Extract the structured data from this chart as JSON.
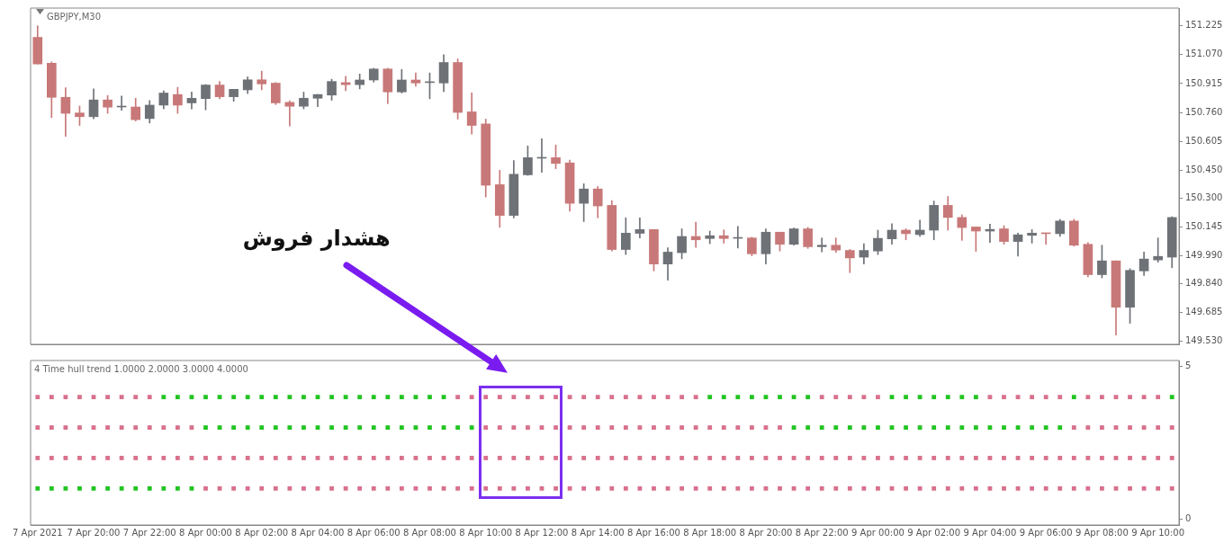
{
  "chart_data": [
    {
      "type": "candlestick",
      "title": "GBPJPY,M30",
      "annotations": [
        "هشدار فروش"
      ],
      "tick_labels": "y",
      "categories": [
        null,
        null,
        null,
        null,
        null,
        null,
        null,
        null,
        null,
        null,
        null,
        null,
        null,
        null,
        null,
        null,
        null,
        null,
        null,
        null,
        null,
        null,
        null,
        null,
        null,
        null,
        null,
        null,
        null,
        null,
        null,
        null,
        null,
        null,
        null,
        null,
        null,
        null,
        null,
        null,
        null,
        null,
        null,
        null,
        null,
        null,
        null,
        null,
        null,
        null,
        null,
        null,
        null,
        null,
        null,
        null,
        null,
        null,
        null,
        null,
        null,
        null,
        null,
        null,
        null,
        null,
        null,
        null,
        null,
        null,
        null,
        null,
        null,
        null,
        null,
        null,
        null,
        null,
        null,
        null,
        null,
        null
      ],
      "ohlc": [
        [
          151.163,
          151.225,
          151.02,
          151.02
        ],
        [
          151.024,
          151.031,
          150.732,
          150.841
        ],
        [
          150.841,
          150.892,
          150.631,
          150.755
        ],
        [
          150.757,
          150.794,
          150.69,
          150.737
        ],
        [
          150.737,
          150.887,
          150.726,
          150.827
        ],
        [
          150.827,
          150.851,
          150.755,
          150.788
        ],
        [
          150.789,
          150.848,
          150.771,
          150.789
        ],
        [
          150.789,
          150.836,
          150.714,
          150.721
        ],
        [
          150.727,
          150.824,
          150.703,
          150.799
        ],
        [
          150.799,
          150.876,
          150.779,
          150.864
        ],
        [
          150.856,
          150.895,
          150.755,
          150.799
        ],
        [
          150.811,
          150.869,
          150.779,
          150.836
        ],
        [
          150.834,
          150.91,
          150.774,
          150.907
        ],
        [
          150.907,
          150.926,
          150.833,
          150.844
        ],
        [
          150.844,
          150.884,
          150.82,
          150.884
        ],
        [
          150.881,
          150.951,
          150.861,
          150.935
        ],
        [
          150.935,
          150.982,
          150.881,
          150.913
        ],
        [
          150.917,
          150.92,
          150.802,
          150.811
        ],
        [
          150.814,
          150.822,
          150.687,
          150.793
        ],
        [
          150.793,
          150.869,
          150.779,
          150.836
        ],
        [
          150.836,
          150.856,
          150.791,
          150.856
        ],
        [
          150.853,
          150.938,
          150.825,
          150.926
        ],
        [
          150.92,
          150.954,
          150.876,
          150.909
        ],
        [
          150.909,
          150.966,
          150.886,
          150.934
        ],
        [
          150.934,
          150.997,
          150.923,
          150.993
        ],
        [
          150.993,
          150.997,
          150.807,
          150.87
        ],
        [
          150.87,
          150.991,
          150.864,
          150.934
        ],
        [
          150.934,
          150.972,
          150.9,
          150.918
        ],
        [
          150.92,
          150.972,
          150.833,
          150.92
        ],
        [
          150.918,
          151.07,
          150.872,
          151.028
        ],
        [
          151.028,
          151.047,
          150.724,
          150.76
        ],
        [
          150.763,
          150.865,
          150.644,
          150.69
        ],
        [
          150.698,
          150.724,
          150.306,
          150.369
        ],
        [
          150.372,
          150.45,
          150.143,
          150.207
        ],
        [
          150.207,
          150.501,
          150.194,
          150.428
        ],
        [
          150.425,
          150.58,
          150.422,
          150.517
        ],
        [
          150.514,
          150.619,
          150.439,
          150.514
        ],
        [
          150.517,
          150.585,
          150.458,
          150.486
        ],
        [
          150.489,
          150.504,
          150.23,
          150.272
        ],
        [
          150.272,
          150.377,
          150.174,
          150.349
        ],
        [
          150.349,
          150.362,
          150.194,
          150.258
        ],
        [
          150.261,
          150.287,
          150.016,
          150.024
        ],
        [
          150.024,
          150.194,
          149.997,
          150.112
        ],
        [
          150.111,
          150.194,
          150.086,
          150.131
        ],
        [
          150.131,
          150.131,
          149.909,
          149.946
        ],
        [
          149.946,
          150.033,
          149.859,
          150.01
        ],
        [
          150.007,
          150.135,
          149.974,
          150.094
        ],
        [
          150.094,
          150.171,
          150.035,
          150.076
        ],
        [
          150.083,
          150.123,
          150.055,
          150.098
        ],
        [
          150.098,
          150.129,
          150.058,
          150.083
        ],
        [
          150.084,
          150.148,
          150.032,
          150.084
        ],
        [
          150.086,
          150.09,
          149.99,
          150.001
        ],
        [
          150.001,
          150.135,
          149.946,
          150.117
        ],
        [
          150.117,
          150.117,
          150.016,
          150.052
        ],
        [
          150.052,
          150.14,
          150.047,
          150.135
        ],
        [
          150.135,
          150.143,
          150.03,
          150.039
        ],
        [
          150.039,
          150.086,
          150.011,
          150.047
        ],
        [
          150.047,
          150.086,
          150.008,
          150.021
        ],
        [
          150.019,
          150.024,
          149.9,
          149.979
        ],
        [
          149.983,
          150.055,
          149.946,
          150.019
        ],
        [
          150.016,
          150.128,
          149.997,
          150.084
        ],
        [
          150.081,
          150.163,
          150.052,
          150.128
        ],
        [
          150.128,
          150.135,
          150.076,
          150.109
        ],
        [
          150.104,
          150.182,
          150.094,
          150.128
        ],
        [
          150.128,
          150.284,
          150.076,
          150.261
        ],
        [
          150.261,
          150.309,
          150.128,
          150.196
        ],
        [
          150.196,
          150.21,
          150.073,
          150.142
        ],
        [
          150.145,
          150.145,
          150.014,
          150.123
        ],
        [
          150.123,
          150.16,
          150.062,
          150.132
        ],
        [
          150.135,
          150.152,
          150.052,
          150.067
        ],
        [
          150.067,
          150.112,
          149.988,
          150.103
        ],
        [
          150.1,
          150.131,
          150.058,
          150.112
        ],
        [
          150.112,
          150.112,
          150.052,
          150.109
        ],
        [
          150.109,
          150.186,
          150.094,
          150.177
        ],
        [
          150.177,
          150.186,
          150.042,
          150.047
        ],
        [
          150.052,
          150.061,
          149.877,
          149.889
        ],
        [
          149.889,
          150.047,
          149.872,
          149.963
        ],
        [
          149.963,
          149.963,
          149.565,
          149.714
        ],
        [
          149.714,
          149.921,
          149.628,
          149.912
        ],
        [
          149.909,
          150.01,
          149.884,
          149.973
        ],
        [
          149.968,
          150.086,
          149.956,
          149.987
        ],
        [
          149.983,
          150.2,
          149.926,
          150.196
        ]
      ],
      "colors": [
        "#c87878",
        "#c87878",
        "#c87878",
        "#c87878",
        "#6e7277",
        "#c87878",
        "#6e7277",
        "#c87878",
        "#6e7277",
        "#6e7277",
        "#c87878",
        "#6e7277",
        "#6e7277",
        "#c87878",
        "#6e7277",
        "#6e7277",
        "#c87878",
        "#c87878",
        "#c87878",
        "#6e7277",
        "#6e7277",
        "#6e7277",
        "#c87878",
        "#6e7277",
        "#6e7277",
        "#c87878",
        "#6e7277",
        "#c87878",
        "#6e7277",
        "#6e7277",
        "#c87878",
        "#c87878",
        "#c87878",
        "#c87878",
        "#6e7277",
        "#6e7277",
        "#6e7277",
        "#c87878",
        "#c87878",
        "#6e7277",
        "#c87878",
        "#c87878",
        "#6e7277",
        "#6e7277",
        "#c87878",
        "#6e7277",
        "#6e7277",
        "#c87878",
        "#6e7277",
        "#c87878",
        "#6e7277",
        "#c87878",
        "#6e7277",
        "#c87878",
        "#6e7277",
        "#c87878",
        "#6e7277",
        "#c87878",
        "#c87878",
        "#6e7277",
        "#6e7277",
        "#6e7277",
        "#c87878",
        "#6e7277",
        "#6e7277",
        "#c87878",
        "#c87878",
        "#c87878",
        "#6e7277",
        "#c87878",
        "#6e7277",
        "#6e7277",
        "#c87878",
        "#6e7277",
        "#c87878",
        "#c87878",
        "#6e7277",
        "#c87878",
        "#6e7277",
        "#6e7277",
        "#6e7277",
        "#6e7277"
      ],
      "ylim": [
        149.515,
        151.32
      ],
      "yticks": [
        151.225,
        {
          "value": 151.07,
          "label": "151.070"
        },
        150.915,
        {
          "value": 150.76,
          "label": "150.760"
        },
        150.605,
        {
          "value": 150.45,
          "label": "150.450"
        },
        {
          "value": 150.3,
          "label": "150.300"
        },
        150.145,
        {
          "value": 149.99,
          "label": "149.990"
        },
        {
          "value": 149.84,
          "label": "149.840"
        },
        149.685,
        {
          "value": 149.53,
          "label": "149.530"
        }
      ]
    },
    {
      "type": "scatter",
      "title": "4 Time hull trend 1.0000 2.0000 3.0000 4.0000",
      "marker": "square",
      "categories": [
        "7 Apr 2021",
        null,
        null,
        null,
        "7 Apr 20:00",
        null,
        null,
        null,
        "7 Apr 22:00",
        null,
        null,
        null,
        "8 Apr 00:00",
        null,
        null,
        null,
        "8 Apr 02:00",
        null,
        null,
        null,
        "8 Apr 04:00",
        null,
        null,
        null,
        "8 Apr 06:00",
        null,
        null,
        null,
        "8 Apr 08:00",
        null,
        null,
        null,
        "8 Apr 10:00",
        null,
        null,
        null,
        "8 Apr 12:00",
        null,
        null,
        null,
        "8 Apr 14:00",
        null,
        null,
        null,
        "8 Apr 16:00",
        null,
        null,
        null,
        "8 Apr 18:00",
        null,
        null,
        null,
        "8 Apr 20:00",
        null,
        null,
        null,
        "8 Apr 22:00",
        null,
        null,
        null,
        "9 Apr 00:00",
        null,
        null,
        null,
        "9 Apr 02:00",
        null,
        null,
        null,
        "9 Apr 04:00",
        null,
        null,
        null,
        "9 Apr 06:00",
        null,
        null,
        null,
        "9 Apr 08:00",
        null,
        null,
        null,
        "9 Apr 10:00",
        null
      ],
      "ylim": [
        -0.2,
        5.2
      ],
      "yticks": [
        0,
        5
      ],
      "series": [
        {
          "values": [
            1,
            1,
            1,
            1,
            1,
            1,
            1,
            1,
            1,
            1,
            1,
            1,
            1,
            1,
            1,
            1,
            1,
            1,
            1,
            1,
            1,
            1,
            1,
            1,
            1,
            1,
            1,
            1,
            1,
            1,
            1,
            1,
            1,
            1,
            1,
            1,
            1,
            1,
            1,
            1,
            1,
            1,
            1,
            1,
            1,
            1,
            1,
            1,
            1,
            1,
            1,
            1,
            1,
            1,
            1,
            1,
            1,
            1,
            1,
            1,
            1,
            1,
            1,
            1,
            1,
            1,
            1,
            1,
            1,
            1,
            1,
            1,
            1,
            1,
            1,
            1,
            1,
            1,
            1,
            1,
            1,
            1
          ],
          "colors": [
            "#22c422",
            "#22c422",
            "#22c422",
            "#22c422",
            "#22c422",
            "#22c422",
            "#22c422",
            "#22c422",
            "#22c422",
            "#22c422",
            "#22c422",
            "#22c422",
            "#d8708c",
            "#d8708c",
            "#d8708c",
            "#d8708c",
            "#d8708c",
            "#d8708c",
            "#d8708c",
            "#d8708c",
            "#d8708c",
            "#d8708c",
            "#d8708c",
            "#d8708c",
            "#d8708c",
            "#d8708c",
            "#d8708c",
            "#d8708c",
            "#d8708c",
            "#d8708c",
            "#d8708c",
            "#d8708c",
            "#d8708c",
            "#d8708c",
            "#d8708c",
            "#d8708c",
            "#d8708c",
            "#d8708c",
            "#d8708c",
            "#d8708c",
            "#d8708c",
            "#d8708c",
            "#d8708c",
            "#d8708c",
            "#d8708c",
            "#d8708c",
            "#d8708c",
            "#d8708c",
            "#d8708c",
            "#d8708c",
            "#d8708c",
            "#d8708c",
            "#d8708c",
            "#d8708c",
            "#d8708c",
            "#d8708c",
            "#d8708c",
            "#d8708c",
            "#d8708c",
            "#d8708c",
            "#d8708c",
            "#d8708c",
            "#d8708c",
            "#d8708c",
            "#d8708c",
            "#d8708c",
            "#d8708c",
            "#d8708c",
            "#d8708c",
            "#d8708c",
            "#d8708c",
            "#d8708c",
            "#d8708c",
            "#d8708c",
            "#d8708c",
            "#d8708c",
            "#d8708c",
            "#d8708c",
            "#d8708c",
            "#d8708c",
            "#d8708c",
            "#d8708c"
          ]
        },
        {
          "values": [
            2,
            2,
            2,
            2,
            2,
            2,
            2,
            2,
            2,
            2,
            2,
            2,
            2,
            2,
            2,
            2,
            2,
            2,
            2,
            2,
            2,
            2,
            2,
            2,
            2,
            2,
            2,
            2,
            2,
            2,
            2,
            2,
            2,
            2,
            2,
            2,
            2,
            2,
            2,
            2,
            2,
            2,
            2,
            2,
            2,
            2,
            2,
            2,
            2,
            2,
            2,
            2,
            2,
            2,
            2,
            2,
            2,
            2,
            2,
            2,
            2,
            2,
            2,
            2,
            2,
            2,
            2,
            2,
            2,
            2,
            2,
            2,
            2,
            2,
            2,
            2,
            2,
            2,
            2,
            2,
            2,
            2
          ],
          "colors": [
            "#d8708c",
            "#d8708c",
            "#d8708c",
            "#d8708c",
            "#d8708c",
            "#d8708c",
            "#d8708c",
            "#d8708c",
            "#d8708c",
            "#d8708c",
            "#d8708c",
            "#d8708c",
            "#d8708c",
            "#d8708c",
            "#d8708c",
            "#d8708c",
            "#d8708c",
            "#d8708c",
            "#d8708c",
            "#d8708c",
            "#d8708c",
            "#d8708c",
            "#d8708c",
            "#d8708c",
            "#d8708c",
            "#d8708c",
            "#d8708c",
            "#d8708c",
            "#d8708c",
            "#d8708c",
            "#d8708c",
            "#d8708c",
            "#d8708c",
            "#d8708c",
            "#d8708c",
            "#d8708c",
            "#d8708c",
            "#d8708c",
            "#d8708c",
            "#d8708c",
            "#d8708c",
            "#d8708c",
            "#d8708c",
            "#d8708c",
            "#d8708c",
            "#d8708c",
            "#d8708c",
            "#d8708c",
            "#d8708c",
            "#d8708c",
            "#d8708c",
            "#d8708c",
            "#d8708c",
            "#d8708c",
            "#d8708c",
            "#d8708c",
            "#d8708c",
            "#d8708c",
            "#d8708c",
            "#d8708c",
            "#d8708c",
            "#d8708c",
            "#d8708c",
            "#d8708c",
            "#d8708c",
            "#d8708c",
            "#d8708c",
            "#d8708c",
            "#d8708c",
            "#d8708c",
            "#d8708c",
            "#d8708c",
            "#d8708c",
            "#d8708c",
            "#d8708c",
            "#d8708c",
            "#d8708c",
            "#d8708c",
            "#d8708c",
            "#d8708c",
            "#d8708c",
            "#d8708c"
          ]
        },
        {
          "values": [
            3,
            3,
            3,
            3,
            3,
            3,
            3,
            3,
            3,
            3,
            3,
            3,
            3,
            3,
            3,
            3,
            3,
            3,
            3,
            3,
            3,
            3,
            3,
            3,
            3,
            3,
            3,
            3,
            3,
            3,
            3,
            3,
            3,
            3,
            3,
            3,
            3,
            3,
            3,
            3,
            3,
            3,
            3,
            3,
            3,
            3,
            3,
            3,
            3,
            3,
            3,
            3,
            3,
            3,
            3,
            3,
            3,
            3,
            3,
            3,
            3,
            3,
            3,
            3,
            3,
            3,
            3,
            3,
            3,
            3,
            3,
            3,
            3,
            3,
            3,
            3,
            3,
            3,
            3,
            3,
            3,
            3
          ],
          "colors": [
            "#d8708c",
            "#d8708c",
            "#d8708c",
            "#d8708c",
            "#d8708c",
            "#d8708c",
            "#d8708c",
            "#d8708c",
            "#d8708c",
            "#d8708c",
            "#d8708c",
            "#d8708c",
            "#22c422",
            "#22c422",
            "#22c422",
            "#22c422",
            "#22c422",
            "#22c422",
            "#22c422",
            "#22c422",
            "#22c422",
            "#22c422",
            "#22c422",
            "#22c422",
            "#22c422",
            "#22c422",
            "#22c422",
            "#22c422",
            "#22c422",
            "#22c422",
            "#22c422",
            "#22c422",
            "#d8708c",
            "#d8708c",
            "#d8708c",
            "#d8708c",
            "#d8708c",
            "#d8708c",
            "#d8708c",
            "#d8708c",
            "#d8708c",
            "#d8708c",
            "#d8708c",
            "#d8708c",
            "#d8708c",
            "#d8708c",
            "#d8708c",
            "#d8708c",
            "#d8708c",
            "#d8708c",
            "#d8708c",
            "#d8708c",
            "#d8708c",
            "#d8708c",
            "#22c422",
            "#22c422",
            "#22c422",
            "#22c422",
            "#22c422",
            "#22c422",
            "#22c422",
            "#22c422",
            "#22c422",
            "#22c422",
            "#22c422",
            "#22c422",
            "#22c422",
            "#22c422",
            "#22c422",
            "#22c422",
            "#22c422",
            "#22c422",
            "#22c422",
            "#22c422",
            "#d8708c",
            "#d8708c",
            "#d8708c",
            "#d8708c",
            "#d8708c",
            "#d8708c",
            "#d8708c",
            "#d8708c"
          ]
        },
        {
          "values": [
            4,
            4,
            4,
            4,
            4,
            4,
            4,
            4,
            4,
            4,
            4,
            4,
            4,
            4,
            4,
            4,
            4,
            4,
            4,
            4,
            4,
            4,
            4,
            4,
            4,
            4,
            4,
            4,
            4,
            4,
            4,
            4,
            4,
            4,
            4,
            4,
            4,
            4,
            4,
            4,
            4,
            4,
            4,
            4,
            4,
            4,
            4,
            4,
            4,
            4,
            4,
            4,
            4,
            4,
            4,
            4,
            4,
            4,
            4,
            4,
            4,
            4,
            4,
            4,
            4,
            4,
            4,
            4,
            4,
            4,
            4,
            4,
            4,
            4,
            4,
            4,
            4,
            4,
            4,
            4,
            4,
            4
          ],
          "colors": [
            "#d8708c",
            "#d8708c",
            "#d8708c",
            "#d8708c",
            "#d8708c",
            "#d8708c",
            "#d8708c",
            "#d8708c",
            "#d8708c",
            "#22c422",
            "#22c422",
            "#22c422",
            "#22c422",
            "#22c422",
            "#22c422",
            "#22c422",
            "#22c422",
            "#22c422",
            "#22c422",
            "#22c422",
            "#22c422",
            "#22c422",
            "#22c422",
            "#22c422",
            "#22c422",
            "#22c422",
            "#22c422",
            "#22c422",
            "#22c422",
            "#22c422",
            "#d8708c",
            "#d8708c",
            "#d8708c",
            "#d8708c",
            "#d8708c",
            "#d8708c",
            "#d8708c",
            "#d8708c",
            "#d8708c",
            "#d8708c",
            "#d8708c",
            "#d8708c",
            "#d8708c",
            "#d8708c",
            "#d8708c",
            "#d8708c",
            "#d8708c",
            "#d8708c",
            "#22c422",
            "#22c422",
            "#22c422",
            "#22c422",
            "#22c422",
            "#22c422",
            "#22c422",
            "#22c422",
            "#d8708c",
            "#d8708c",
            "#d8708c",
            "#d8708c",
            "#d8708c",
            "#22c422",
            "#22c422",
            "#22c422",
            "#22c422",
            "#22c422",
            "#22c422",
            "#22c422",
            "#d8708c",
            "#d8708c",
            "#d8708c",
            "#d8708c",
            "#d8708c",
            "#d8708c",
            "#22c422",
            "#d8708c",
            "#d8708c",
            "#d8708c",
            "#d8708c",
            "#d8708c",
            "#d8708c",
            "#22c422"
          ]
        }
      ]
    }
  ]
}
